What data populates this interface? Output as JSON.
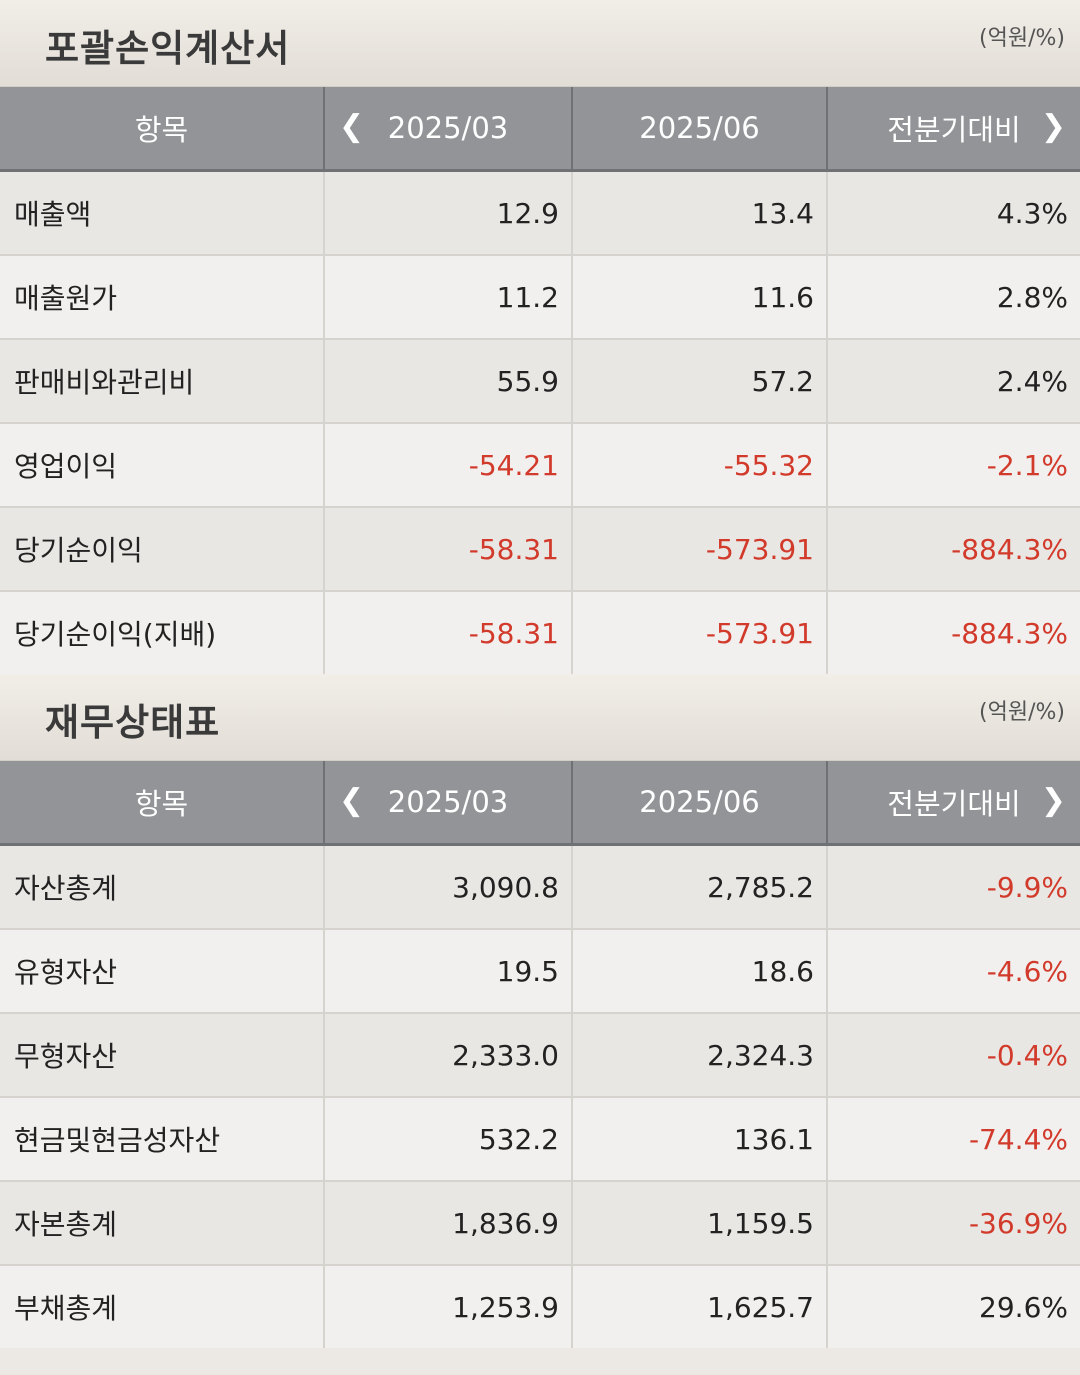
{
  "income": {
    "title": "포괄손익계산서",
    "unit": "(억원/%)",
    "headers": [
      "항목",
      "2025/03",
      "2025/06",
      "전분기대비"
    ],
    "rows": [
      {
        "item": "매출액",
        "q1": "12.9",
        "q2": "13.4",
        "change": "4.3%"
      },
      {
        "item": "매출원가",
        "q1": "11.2",
        "q2": "11.6",
        "change": "2.8%"
      },
      {
        "item": "판매비와관리비",
        "q1": "55.9",
        "q2": "57.2",
        "change": "2.4%"
      },
      {
        "item": "영업이익",
        "q1": "-54.21",
        "q2": "-55.32",
        "change": "-2.1%"
      },
      {
        "item": "당기순이익",
        "q1": "-58.31",
        "q2": "-573.91",
        "change": "-884.3%"
      },
      {
        "item": "당기순이익(지배)",
        "q1": "-58.31",
        "q2": "-573.91",
        "change": "-884.3%"
      }
    ]
  },
  "balance": {
    "title": "재무상태표",
    "unit": "(억원/%)",
    "headers": [
      "항목",
      "2025/03",
      "2025/06",
      "전분기대비"
    ],
    "rows": [
      {
        "item": "자산총계",
        "q1": "3,090.8",
        "q2": "2,785.2",
        "change": "-9.9%"
      },
      {
        "item": "유형자산",
        "q1": "19.5",
        "q2": "18.6",
        "change": "-4.6%"
      },
      {
        "item": "무형자산",
        "q1": "2,333.0",
        "q2": "2,324.3",
        "change": "-0.4%"
      },
      {
        "item": "현금및현금성자산",
        "q1": "532.2",
        "q2": "136.1",
        "change": "-74.4%"
      },
      {
        "item": "자본총계",
        "q1": "1,836.9",
        "q2": "1,159.5",
        "change": "-36.9%"
      },
      {
        "item": "부채총계",
        "q1": "1,253.9",
        "q2": "1,625.7",
        "change": "29.6%"
      }
    ]
  },
  "icons": {
    "prev": "chevron-left-icon",
    "next": "chevron-right-icon"
  },
  "colors": {
    "negative": "#d23a2b",
    "header_bg": "#929497"
  }
}
